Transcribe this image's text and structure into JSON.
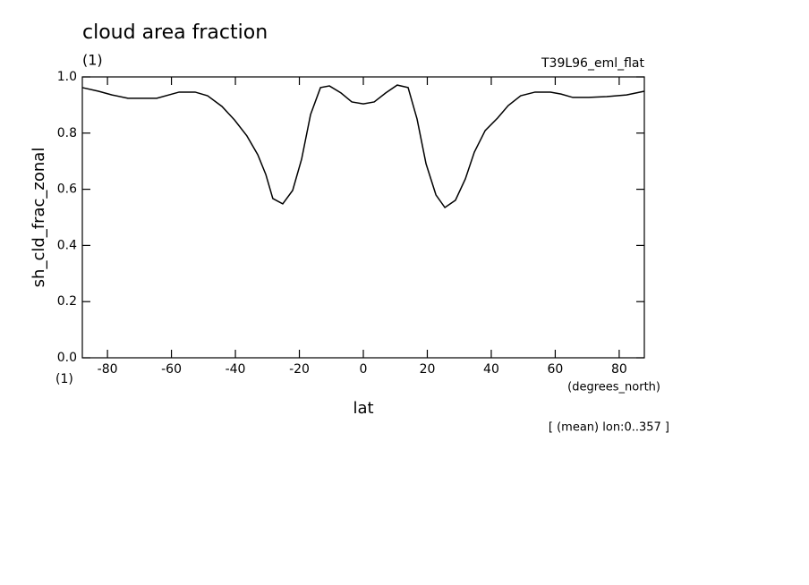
{
  "chart_data": {
    "type": "line",
    "title": "cloud area fraction",
    "title_units": "(1)",
    "experiment": "T39L96_eml_flat",
    "y_label": "sh_cld_frac_zonal",
    "y_units": "(1)",
    "x_label": "lat",
    "x_units": "(degrees_north)",
    "note": "[ (mean) lon:0..357 ]",
    "color": "#000000",
    "x": [
      -87.86,
      -82.8,
      -78.6,
      -73.6,
      -64.6,
      -57.6,
      -52.6,
      -48.7,
      -44.2,
      -40.3,
      -36.4,
      -33.0,
      -30.5,
      -28.3,
      -25.2,
      -22.1,
      -19.3,
      -16.5,
      -13.4,
      -10.6,
      -7.0,
      -3.6,
      0,
      3.4,
      7.0,
      10.6,
      14.0,
      16.8,
      19.6,
      22.7,
      25.5,
      28.8,
      31.9,
      34.7,
      38.1,
      42.0,
      45.3,
      49.2,
      53.7,
      58.5,
      61.8,
      65.5,
      70.5,
      76.1,
      82.3,
      87.86
    ],
    "values": [
      0.962,
      0.949,
      0.936,
      0.924,
      0.924,
      0.946,
      0.946,
      0.933,
      0.895,
      0.847,
      0.79,
      0.723,
      0.653,
      0.567,
      0.548,
      0.596,
      0.707,
      0.866,
      0.962,
      0.968,
      0.943,
      0.911,
      0.904,
      0.911,
      0.943,
      0.971,
      0.962,
      0.85,
      0.691,
      0.58,
      0.535,
      0.561,
      0.637,
      0.732,
      0.809,
      0.854,
      0.898,
      0.933,
      0.946,
      0.946,
      0.939,
      0.927,
      0.927,
      0.93,
      0.936,
      0.949
    ],
    "xlim": [
      -87.86,
      87.86
    ],
    "xticks": [
      -80,
      -60,
      -40,
      -20,
      0,
      20,
      40,
      60,
      80
    ],
    "ylim": [
      0,
      1
    ],
    "yticks": [
      {
        "value": 0,
        "label": "0.0"
      },
      0.2,
      0.4,
      0.6,
      0.8,
      {
        "value": 1,
        "label": "1.0"
      }
    ]
  }
}
